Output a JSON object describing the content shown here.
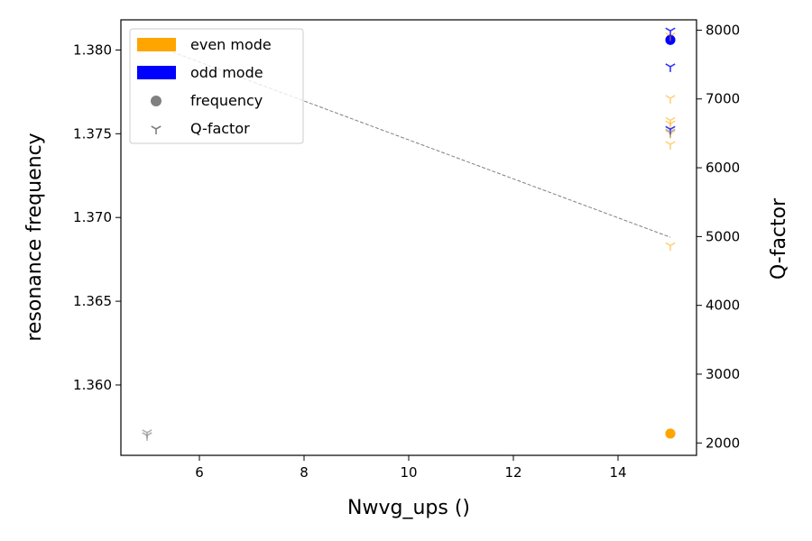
{
  "chart_data": {
    "type": "scatter",
    "title": "",
    "xlabel": "Nwvg_ups ()",
    "ylabel_left": "resonance frequency",
    "ylabel_right": "Q-factor",
    "xlim": [
      4.5,
      15.5
    ],
    "ylim_left": [
      1.3558,
      1.3818
    ],
    "ylim_right": [
      1820,
      8150
    ],
    "x_ticks": [
      6,
      8,
      10,
      12,
      14
    ],
    "y_left_ticks": [
      1.36,
      1.365,
      1.37,
      1.375,
      1.38
    ],
    "y_left_tick_labels": [
      "1.360",
      "1.365",
      "1.370",
      "1.375",
      "1.380"
    ],
    "y_right_ticks": [
      2000,
      3000,
      4000,
      5000,
      6000,
      7000,
      8000
    ],
    "grid": false,
    "legend_position": "top-left",
    "legend": [
      {
        "label": "even mode",
        "kind": "patch",
        "color": "#ffa500"
      },
      {
        "label": "odd mode",
        "kind": "patch",
        "color": "#0000ff"
      },
      {
        "label": "frequency",
        "kind": "circle",
        "color": "#808080"
      },
      {
        "label": "Q-factor",
        "kind": "tri",
        "color": "#808080"
      }
    ],
    "series": [
      {
        "group": "frequency-even",
        "axis": "left",
        "marker": "circle",
        "color": "#ffa500",
        "alpha": 1.0,
        "points": [
          [
            15,
            1.3571
          ],
          [
            15,
            1.3571
          ]
        ]
      },
      {
        "group": "frequency-odd",
        "axis": "left",
        "marker": "circle",
        "color": "#0000ff",
        "alpha": 1.0,
        "points": [
          [
            15,
            1.3806
          ],
          [
            15,
            1.3806
          ]
        ]
      },
      {
        "group": "q-factor-even",
        "axis": "right",
        "marker": "tri",
        "color": "#ffa500",
        "alpha": 0.5,
        "points": [
          [
            15,
            7920
          ],
          [
            15,
            7010
          ],
          [
            15,
            6690
          ],
          [
            15,
            6640
          ],
          [
            15,
            6500
          ],
          [
            15,
            6340
          ],
          [
            15,
            4870
          ]
        ]
      },
      {
        "group": "q-factor-odd",
        "axis": "right",
        "marker": "tri",
        "color": "#0000ff",
        "alpha": 0.8,
        "points": [
          [
            15,
            7990
          ],
          [
            15,
            7470
          ],
          [
            15,
            6560
          ]
        ]
      },
      {
        "group": "q-factor-gray",
        "axis": "right",
        "marker": "tri",
        "color": "#808080",
        "alpha": 0.6,
        "points": [
          [
            5,
            2150
          ],
          [
            5,
            2110
          ],
          [
            15,
            6520
          ]
        ]
      }
    ],
    "trend_line": {
      "axis": "right",
      "color": "#808080",
      "dash": true,
      "points": [
        [
          5,
          7820
        ],
        [
          15,
          4990
        ]
      ]
    }
  }
}
